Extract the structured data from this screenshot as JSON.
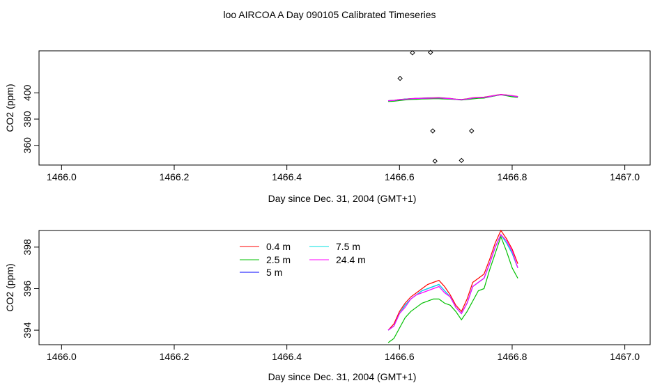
{
  "page": {
    "title": "loo AIRCOA A  Day 090105  Calibrated Timeseries"
  },
  "chart_data": [
    {
      "type": "line",
      "xlabel": "Day since Dec. 31, 2004 (GMT+1)",
      "ylabel": "CO2 (ppm)",
      "xlim": [
        1465.96,
        1467.045
      ],
      "ylim": [
        345.0,
        432.0
      ],
      "xticks": [
        1466.0,
        1466.2,
        1466.4,
        1466.6,
        1466.8,
        1467.0
      ],
      "xtick_labels": [
        "1466.0",
        "1466.2",
        "1466.4",
        "1466.6",
        "1466.8",
        "1467.0"
      ],
      "yticks": [
        360,
        380,
        400
      ],
      "ytick_labels": [
        "360",
        "380",
        "400"
      ],
      "legend": false,
      "grid": false,
      "points": {
        "marker": "open-diamond",
        "color": "#000000",
        "x": [
          1466.601,
          1466.623,
          1466.655,
          1466.659,
          1466.663,
          1466.71,
          1466.728
        ],
        "y": [
          411.0,
          430.5,
          430.8,
          371.0,
          348.0,
          348.5,
          371.0
        ]
      },
      "series": [
        {
          "color": "#ff0000",
          "x": [
            1466.58,
            1466.59,
            1466.6,
            1466.61,
            1466.62,
            1466.63,
            1466.64,
            1466.65,
            1466.66,
            1466.67,
            1466.68,
            1466.69,
            1466.7,
            1466.71,
            1466.72,
            1466.73,
            1466.74,
            1466.75,
            1466.76,
            1466.77,
            1466.78,
            1466.79,
            1466.8,
            1466.81
          ],
          "y": [
            394.0,
            394.3,
            394.9,
            395.3,
            395.6,
            395.8,
            396.0,
            396.2,
            396.3,
            396.4,
            396.1,
            395.7,
            395.2,
            394.9,
            395.5,
            396.3,
            396.5,
            396.7,
            397.4,
            398.2,
            398.8,
            398.4,
            397.9,
            397.2
          ]
        },
        {
          "color": "#00c000",
          "x": [
            1466.58,
            1466.59,
            1466.6,
            1466.61,
            1466.62,
            1466.63,
            1466.64,
            1466.65,
            1466.66,
            1466.67,
            1466.68,
            1466.69,
            1466.7,
            1466.71,
            1466.72,
            1466.73,
            1466.74,
            1466.75,
            1466.76,
            1466.77,
            1466.78,
            1466.79,
            1466.8,
            1466.81
          ],
          "y": [
            393.4,
            393.6,
            394.1,
            394.6,
            394.9,
            395.1,
            395.3,
            395.4,
            395.5,
            395.5,
            395.3,
            395.2,
            394.9,
            394.5,
            394.9,
            395.4,
            395.9,
            396.0,
            396.9,
            397.7,
            398.5,
            397.8,
            397.0,
            396.5
          ]
        },
        {
          "color": "#0000ff",
          "x": [
            1466.58,
            1466.59,
            1466.6,
            1466.61,
            1466.62,
            1466.63,
            1466.64,
            1466.65,
            1466.66,
            1466.67,
            1466.68,
            1466.69,
            1466.7,
            1466.71,
            1466.72,
            1466.73,
            1466.74,
            1466.75,
            1466.76,
            1466.77,
            1466.78,
            1466.79,
            1466.8,
            1466.81
          ],
          "y": [
            394.0,
            394.2,
            394.8,
            395.2,
            395.5,
            395.7,
            395.9,
            396.0,
            396.1,
            396.2,
            395.9,
            395.6,
            395.1,
            394.8,
            395.3,
            396.1,
            396.3,
            396.5,
            397.2,
            398.0,
            398.6,
            398.2,
            397.7,
            397.0
          ]
        },
        {
          "color": "#00e0e0",
          "x": [
            1466.58,
            1466.59,
            1466.6,
            1466.61,
            1466.62,
            1466.63,
            1466.64,
            1466.65,
            1466.66,
            1466.67,
            1466.68,
            1466.69,
            1466.7,
            1466.71,
            1466.72,
            1466.73,
            1466.74,
            1466.75,
            1466.76,
            1466.77,
            1466.78,
            1466.79,
            1466.8,
            1466.81
          ],
          "y": [
            394.0,
            394.2,
            394.8,
            395.2,
            395.5,
            395.7,
            395.9,
            396.0,
            396.1,
            396.2,
            395.9,
            395.6,
            395.1,
            394.8,
            395.3,
            396.1,
            396.3,
            396.5,
            397.2,
            398.0,
            398.6,
            398.2,
            397.7,
            397.0
          ]
        },
        {
          "color": "#ff00ff",
          "x": [
            1466.58,
            1466.59,
            1466.6,
            1466.61,
            1466.62,
            1466.63,
            1466.64,
            1466.65,
            1466.66,
            1466.67,
            1466.68,
            1466.69,
            1466.7,
            1466.71,
            1466.72,
            1466.73,
            1466.74,
            1466.75,
            1466.76,
            1466.77,
            1466.78,
            1466.79,
            1466.8,
            1466.81
          ],
          "y": [
            394.0,
            394.2,
            394.8,
            395.1,
            395.5,
            395.7,
            395.8,
            395.9,
            396.0,
            396.1,
            395.8,
            395.6,
            395.1,
            394.8,
            395.3,
            396.1,
            396.3,
            396.5,
            397.2,
            398.0,
            398.6,
            398.3,
            397.8,
            397.0
          ]
        }
      ]
    },
    {
      "type": "line",
      "xlabel": "Day since Dec. 31, 2004 (GMT+1)",
      "ylabel": "CO2 (ppm)",
      "xlim": [
        1465.96,
        1467.045
      ],
      "ylim": [
        393.3,
        398.8
      ],
      "xticks": [
        1466.0,
        1466.2,
        1466.4,
        1466.6,
        1466.8,
        1467.0
      ],
      "xtick_labels": [
        "1466.0",
        "1466.2",
        "1466.4",
        "1466.6",
        "1466.8",
        "1467.0"
      ],
      "yticks": [
        394,
        396,
        398
      ],
      "ytick_labels": [
        "394",
        "396",
        "398"
      ],
      "legend": true,
      "legend_placement": "top-left, inside plot",
      "grid": false,
      "series": [
        {
          "name": "0.4 m",
          "color": "#ff0000",
          "x": [
            1466.58,
            1466.59,
            1466.6,
            1466.61,
            1466.62,
            1466.63,
            1466.64,
            1466.65,
            1466.66,
            1466.67,
            1466.68,
            1466.69,
            1466.7,
            1466.71,
            1466.72,
            1466.73,
            1466.74,
            1466.75,
            1466.76,
            1466.77,
            1466.78,
            1466.79,
            1466.8,
            1466.81
          ],
          "y": [
            394.0,
            394.3,
            394.9,
            395.3,
            395.6,
            395.8,
            396.0,
            396.2,
            396.3,
            396.4,
            396.1,
            395.7,
            395.2,
            394.9,
            395.5,
            396.3,
            396.5,
            396.7,
            397.4,
            398.2,
            398.8,
            398.4,
            397.9,
            397.2
          ]
        },
        {
          "name": "2.5 m",
          "color": "#00c000",
          "x": [
            1466.58,
            1466.59,
            1466.6,
            1466.61,
            1466.62,
            1466.63,
            1466.64,
            1466.65,
            1466.66,
            1466.67,
            1466.68,
            1466.69,
            1466.7,
            1466.71,
            1466.72,
            1466.73,
            1466.74,
            1466.75,
            1466.76,
            1466.77,
            1466.78,
            1466.79,
            1466.8,
            1466.81
          ],
          "y": [
            393.4,
            393.6,
            394.1,
            394.6,
            394.9,
            395.1,
            395.3,
            395.4,
            395.5,
            395.5,
            395.3,
            395.2,
            394.9,
            394.5,
            394.9,
            395.4,
            395.9,
            396.0,
            396.9,
            397.7,
            398.5,
            397.8,
            397.0,
            396.5
          ]
        },
        {
          "name": "5 m",
          "color": "#0000ff",
          "x": [
            1466.58,
            1466.59,
            1466.6,
            1466.61,
            1466.62,
            1466.63,
            1466.64,
            1466.65,
            1466.66,
            1466.67,
            1466.68,
            1466.69,
            1466.7,
            1466.71,
            1466.72,
            1466.73,
            1466.74,
            1466.75,
            1466.76,
            1466.77,
            1466.78,
            1466.79,
            1466.8,
            1466.81
          ],
          "y": [
            394.0,
            394.2,
            394.8,
            395.2,
            395.5,
            395.7,
            395.9,
            396.0,
            396.1,
            396.2,
            395.9,
            395.6,
            395.1,
            394.8,
            395.3,
            396.1,
            396.3,
            396.5,
            397.2,
            398.0,
            398.6,
            398.2,
            397.7,
            397.0
          ]
        },
        {
          "name": "7.5 m",
          "color": "#00e0e0",
          "x": [
            1466.58,
            1466.59,
            1466.6,
            1466.61,
            1466.62,
            1466.63,
            1466.64,
            1466.65,
            1466.66,
            1466.67,
            1466.68,
            1466.69,
            1466.7,
            1466.71,
            1466.72,
            1466.73,
            1466.74,
            1466.75,
            1466.76,
            1466.77,
            1466.78,
            1466.79,
            1466.8,
            1466.81
          ],
          "y": [
            394.0,
            394.2,
            394.8,
            395.2,
            395.5,
            395.7,
            395.9,
            396.0,
            396.1,
            396.2,
            395.9,
            395.6,
            395.1,
            394.8,
            395.3,
            396.1,
            396.3,
            396.5,
            397.2,
            398.0,
            398.6,
            398.2,
            397.7,
            397.0
          ]
        },
        {
          "name": "24.4 m",
          "color": "#ff00ff",
          "x": [
            1466.58,
            1466.59,
            1466.6,
            1466.61,
            1466.62,
            1466.63,
            1466.64,
            1466.65,
            1466.66,
            1466.67,
            1466.68,
            1466.69,
            1466.7,
            1466.71,
            1466.72,
            1466.73,
            1466.74,
            1466.75,
            1466.76,
            1466.77,
            1466.78,
            1466.79,
            1466.8,
            1466.81
          ],
          "y": [
            394.0,
            394.2,
            394.8,
            395.1,
            395.5,
            395.7,
            395.8,
            395.9,
            396.0,
            396.1,
            395.8,
            395.6,
            395.1,
            394.8,
            395.3,
            396.1,
            396.3,
            396.5,
            397.2,
            398.0,
            398.6,
            398.3,
            397.8,
            397.0
          ]
        }
      ]
    }
  ]
}
